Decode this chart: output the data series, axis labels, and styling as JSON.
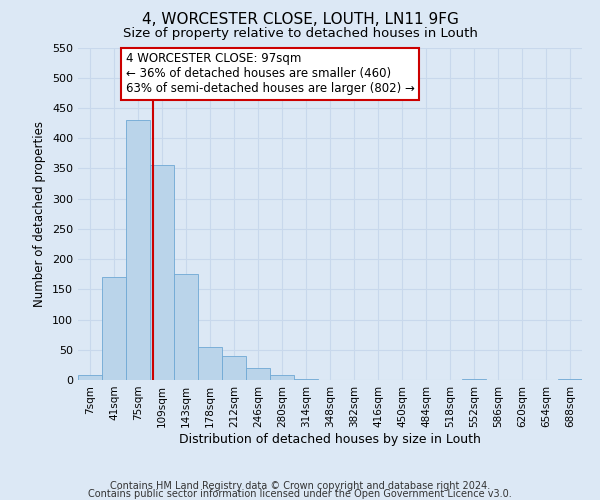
{
  "title": "4, WORCESTER CLOSE, LOUTH, LN11 9FG",
  "subtitle": "Size of property relative to detached houses in Louth",
  "xlabel": "Distribution of detached houses by size in Louth",
  "ylabel": "Number of detached properties",
  "footnote1": "Contains HM Land Registry data © Crown copyright and database right 2024.",
  "footnote2": "Contains public sector information licensed under the Open Government Licence v3.0.",
  "bar_labels": [
    "7sqm",
    "41sqm",
    "75sqm",
    "109sqm",
    "143sqm",
    "178sqm",
    "212sqm",
    "246sqm",
    "280sqm",
    "314sqm",
    "348sqm",
    "382sqm",
    "416sqm",
    "450sqm",
    "484sqm",
    "518sqm",
    "552sqm",
    "586sqm",
    "620sqm",
    "654sqm",
    "688sqm"
  ],
  "bar_values": [
    8,
    170,
    430,
    355,
    175,
    55,
    40,
    20,
    8,
    1,
    0,
    0,
    0,
    0,
    0,
    0,
    1,
    0,
    0,
    0,
    1
  ],
  "bar_color": "#bad4ea",
  "bar_edge_color": "#6fa8d4",
  "ylim": [
    0,
    550
  ],
  "yticks": [
    0,
    50,
    100,
    150,
    200,
    250,
    300,
    350,
    400,
    450,
    500,
    550
  ],
  "vline_x_index": 2.64,
  "vline_color": "#cc0000",
  "annotation_text": "4 WORCESTER CLOSE: 97sqm\n← 36% of detached houses are smaller (460)\n63% of semi-detached houses are larger (802) →",
  "annotation_box_color": "white",
  "annotation_box_edge": "#cc0000",
  "grid_color": "#c8d8ec",
  "background_color": "#dce8f5",
  "title_fontsize": 11,
  "subtitle_fontsize": 9.5,
  "xlabel_fontsize": 9,
  "ylabel_fontsize": 8.5,
  "annot_fontsize": 8.5,
  "footnote_fontsize": 7
}
